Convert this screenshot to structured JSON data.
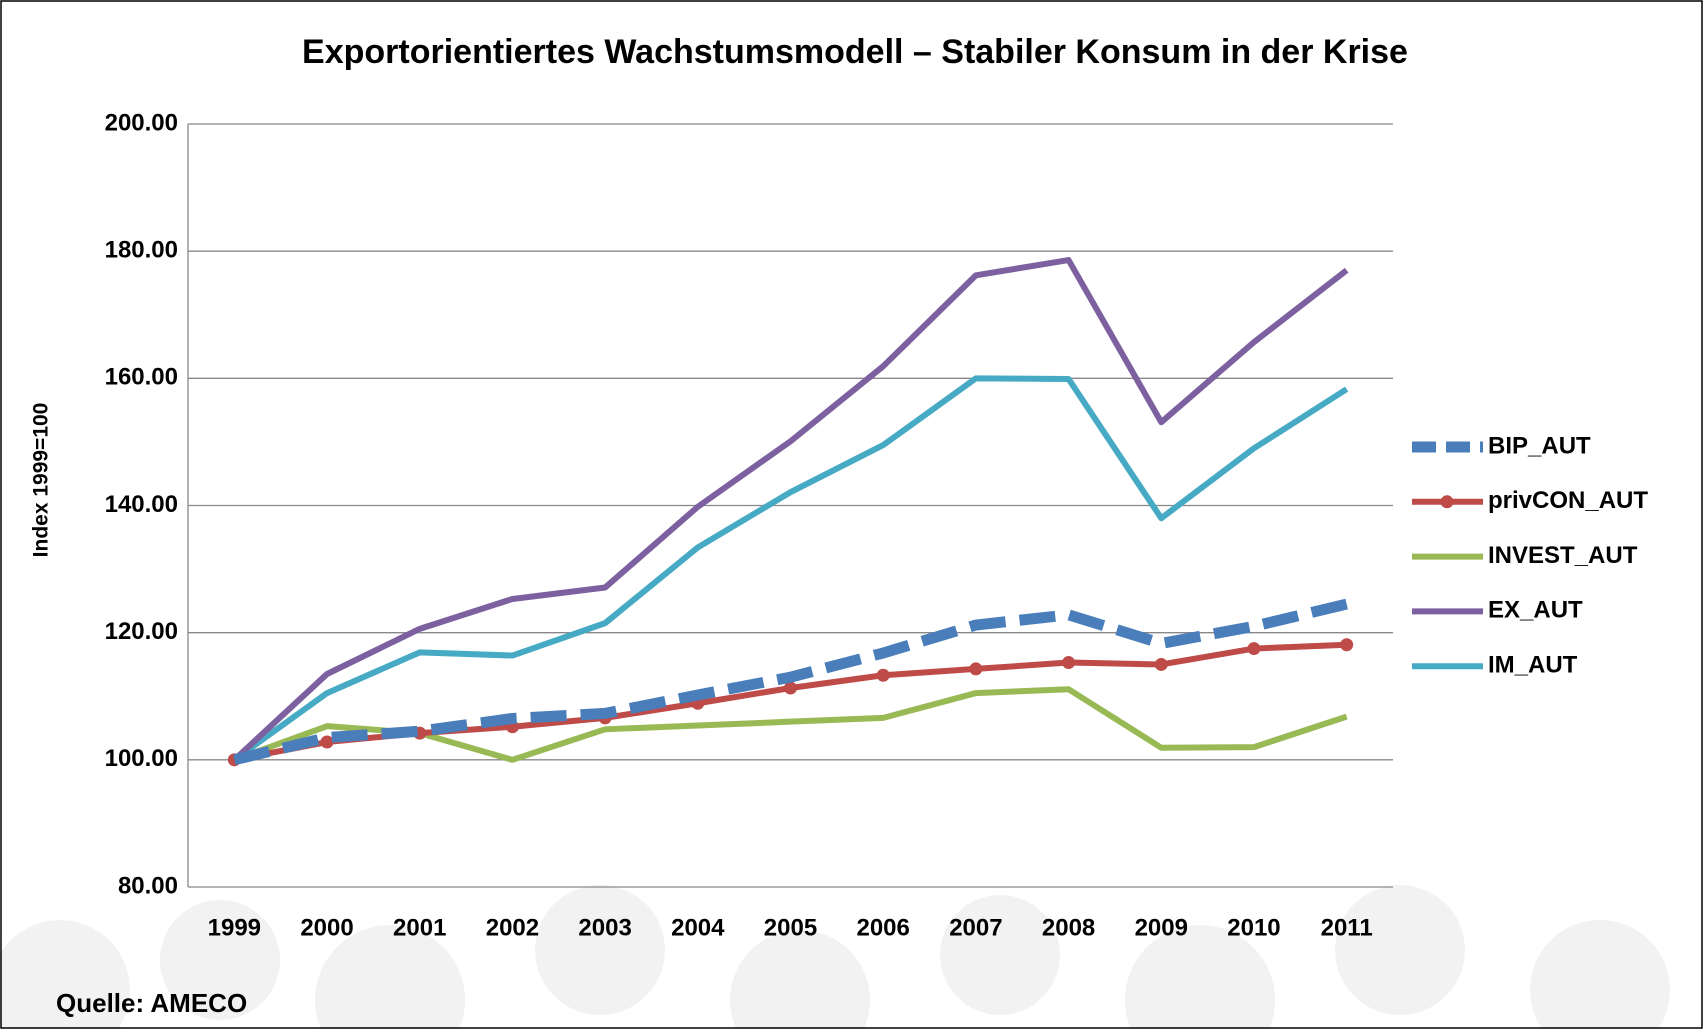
{
  "chart_data": {
    "type": "line",
    "title": "Exportorientiertes Wachstumsmodell – Stabiler Konsum in der Krise",
    "y_label": "Index 1999=100",
    "source": "Quelle: AMECO",
    "categories": [
      "1999",
      "2000",
      "2001",
      "2002",
      "2003",
      "2004",
      "2005",
      "2006",
      "2007",
      "2008",
      "2009",
      "2010",
      "2011"
    ],
    "series": [
      {
        "name": "BIP_AUT",
        "color": "#4a7ebb",
        "dashed": true,
        "values": [
          100,
          103.5,
          104.5,
          106.5,
          107.3,
          110.2,
          113,
          116.8,
          121.2,
          122.8,
          118.3,
          121,
          124.5
        ]
      },
      {
        "name": "privCON_AUT",
        "color": "#be4b48",
        "markers": true,
        "values": [
          100,
          102.8,
          104.2,
          105.2,
          106.6,
          108.9,
          111.3,
          113.3,
          114.3,
          115.3,
          115.0,
          117.5,
          118.1
        ]
      },
      {
        "name": "INVEST_AUT",
        "color": "#98b954",
        "values": [
          100,
          105.3,
          104.2,
          100.0,
          104.8,
          105.4,
          106.0,
          106.6,
          110.5,
          111.1,
          101.9,
          102.0,
          106.8
        ]
      },
      {
        "name": "EX_AUT",
        "color": "#7d60a0",
        "values": [
          100,
          113.5,
          120.6,
          125.3,
          127.1,
          139.8,
          150.1,
          161.9,
          176.2,
          178.6,
          153.1,
          165.7,
          177.0
        ]
      },
      {
        "name": "IM_AUT",
        "color": "#46aac5",
        "values": [
          100,
          110.5,
          116.9,
          116.4,
          121.5,
          133.4,
          142.1,
          149.5,
          160.0,
          159.9,
          138.0,
          149.0,
          158.3
        ]
      }
    ],
    "ylim": [
      80,
      200
    ],
    "yticks": [
      {
        "value": 80,
        "label": "80.00"
      },
      {
        "value": 100,
        "label": "100.00"
      },
      {
        "value": 120,
        "label": "120.00"
      },
      {
        "value": 140,
        "label": "140.00"
      },
      {
        "value": 160,
        "label": "160.00"
      },
      {
        "value": 180,
        "label": "180.00"
      },
      {
        "value": 200,
        "label": "200.00"
      }
    ],
    "grid": true,
    "legend": "right"
  }
}
